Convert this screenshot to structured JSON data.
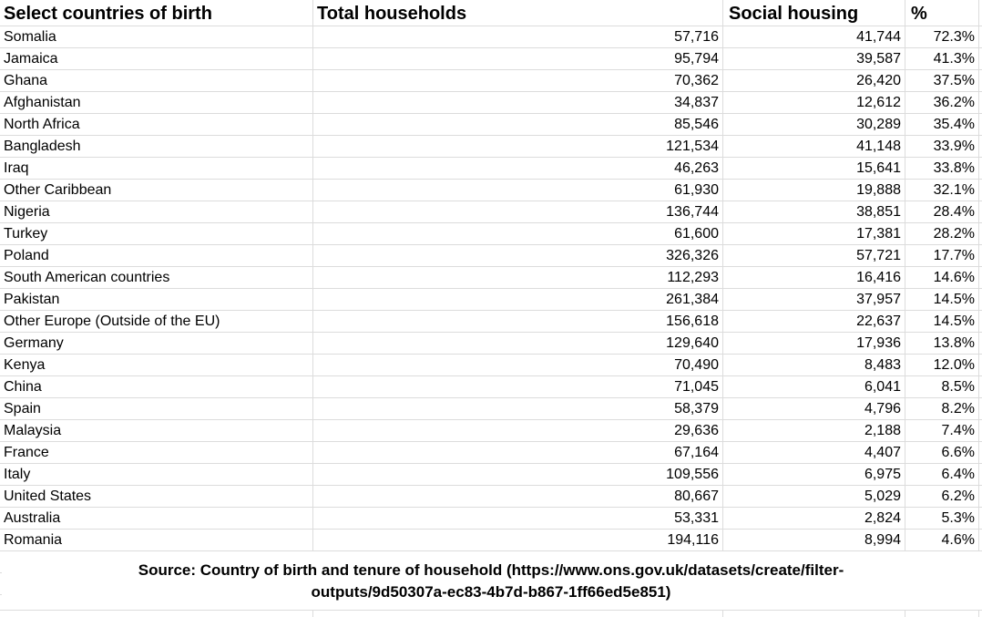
{
  "chart_data": {
    "type": "table",
    "headers": {
      "country": "Select countries of birth",
      "total": "Total households",
      "social": "Social housing",
      "pct": "%"
    },
    "rows": [
      {
        "country": "Somalia",
        "total": "57,716",
        "social": "41,744",
        "pct": "72.3%"
      },
      {
        "country": "Jamaica",
        "total": "95,794",
        "social": "39,587",
        "pct": "41.3%"
      },
      {
        "country": "Ghana",
        "total": "70,362",
        "social": "26,420",
        "pct": "37.5%"
      },
      {
        "country": "Afghanistan",
        "total": "34,837",
        "social": "12,612",
        "pct": "36.2%"
      },
      {
        "country": "North Africa",
        "total": "85,546",
        "social": "30,289",
        "pct": "35.4%"
      },
      {
        "country": "Bangladesh",
        "total": "121,534",
        "social": "41,148",
        "pct": "33.9%"
      },
      {
        "country": "Iraq",
        "total": "46,263",
        "social": "15,641",
        "pct": "33.8%"
      },
      {
        "country": "Other Caribbean",
        "total": "61,930",
        "social": "19,888",
        "pct": "32.1%"
      },
      {
        "country": "Nigeria",
        "total": "136,744",
        "social": "38,851",
        "pct": "28.4%"
      },
      {
        "country": "Turkey",
        "total": "61,600",
        "social": "17,381",
        "pct": "28.2%"
      },
      {
        "country": "Poland",
        "total": "326,326",
        "social": "57,721",
        "pct": "17.7%"
      },
      {
        "country": "South American countries",
        "total": "112,293",
        "social": "16,416",
        "pct": "14.6%"
      },
      {
        "country": "Pakistan",
        "total": "261,384",
        "social": "37,957",
        "pct": "14.5%"
      },
      {
        "country": "Other Europe (Outside of the EU)",
        "total": "156,618",
        "social": "22,637",
        "pct": "14.5%"
      },
      {
        "country": "Germany",
        "total": "129,640",
        "social": "17,936",
        "pct": "13.8%"
      },
      {
        "country": "Kenya",
        "total": "70,490",
        "social": "8,483",
        "pct": "12.0%"
      },
      {
        "country": "China",
        "total": "71,045",
        "social": "6,041",
        "pct": "8.5%"
      },
      {
        "country": "Spain",
        "total": "58,379",
        "social": "4,796",
        "pct": "8.2%"
      },
      {
        "country": "Malaysia",
        "total": "29,636",
        "social": "2,188",
        "pct": "7.4%"
      },
      {
        "country": "France",
        "total": "67,164",
        "social": "4,407",
        "pct": "6.6%"
      },
      {
        "country": "Italy",
        "total": "109,556",
        "social": "6,975",
        "pct": "6.4%"
      },
      {
        "country": "United States",
        "total": "80,667",
        "social": "5,029",
        "pct": "6.2%"
      },
      {
        "country": "Australia",
        "total": "53,331",
        "social": "2,824",
        "pct": "5.3%"
      },
      {
        "country": "Romania",
        "total": "194,116",
        "social": "8,994",
        "pct": "4.6%"
      }
    ],
    "source_line1": "Source: Country of birth and tenure of household (https://www.ons.gov.uk/datasets/create/filter-",
    "source_line2": "outputs/9d50307a-ec83-4b7d-b867-1ff66ed5e851)"
  },
  "colors": {
    "gridline": "#dcdcdc",
    "text": "#000000",
    "background": "#ffffff"
  }
}
